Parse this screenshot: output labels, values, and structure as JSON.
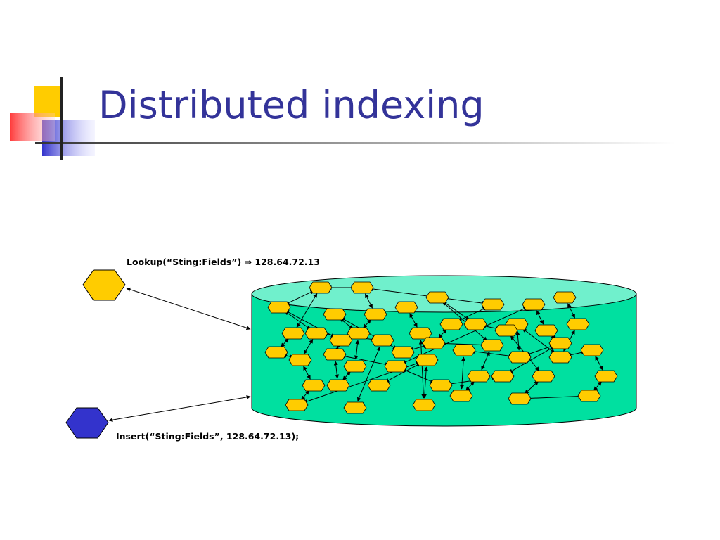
{
  "header": {
    "title": "Distributed indexing"
  },
  "labels": {
    "lookup": "Lookup(“Sting:Fields”) ⇒ 128.64.72.13",
    "insert": "Insert(“Sting:Fields”, 128.64.72.13);"
  }
}
